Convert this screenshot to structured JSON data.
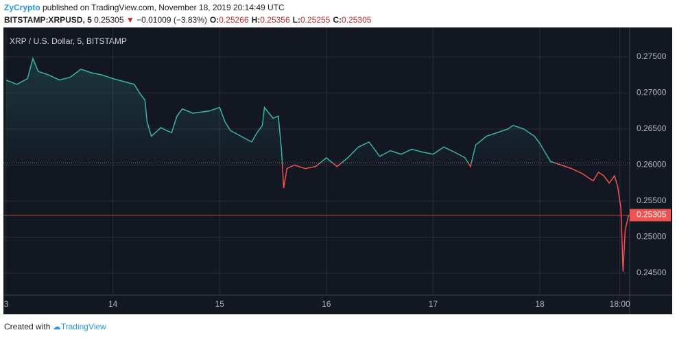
{
  "header": {
    "author": "ZyCrypto",
    "published": " published on TradingView.com, November 18, 2019 20:14:49 UTC",
    "symbol": "BITSTAMP:XRPUSD, 5",
    "price": "0.25305",
    "change": "−0.01009 (−3.83%)",
    "ohlc": [
      {
        "label": "O:",
        "value": "0.25266"
      },
      {
        "label": "H:",
        "value": "0.25356"
      },
      {
        "label": "L:",
        "value": "0.25255"
      },
      {
        "label": "C:",
        "value": "0.25305"
      }
    ]
  },
  "chart_data": {
    "type": "line",
    "title": "XRP / U.S. Dollar, 5, BITSTAMP",
    "x": [
      13.0,
      13.1,
      13.2,
      13.25,
      13.3,
      13.4,
      13.5,
      13.6,
      13.7,
      13.8,
      13.9,
      14.0,
      14.1,
      14.2,
      14.25,
      14.3,
      14.32,
      14.36,
      14.45,
      14.5,
      14.55,
      14.6,
      14.65,
      14.75,
      14.9,
      15.0,
      15.05,
      15.1,
      15.2,
      15.3,
      15.35,
      15.4,
      15.42,
      15.5,
      15.55,
      15.58,
      15.6,
      15.63,
      15.7,
      15.8,
      15.9,
      16.0,
      16.1,
      16.2,
      16.3,
      16.4,
      16.5,
      16.6,
      16.7,
      16.8,
      16.9,
      17.0,
      17.1,
      17.2,
      17.3,
      17.35,
      17.4,
      17.5,
      17.6,
      17.7,
      17.75,
      17.85,
      17.95,
      18.0,
      18.1,
      18.2,
      18.3,
      18.4,
      18.5,
      18.55,
      18.6,
      18.65,
      18.7,
      18.73,
      18.76,
      18.78,
      18.8,
      18.82,
      18.83
    ],
    "series": [
      {
        "name": "XRPUSD",
        "color": "#3bb3a0",
        "color_below": "#ef5350",
        "values": [
          0.2718,
          0.2712,
          0.272,
          0.2748,
          0.273,
          0.2725,
          0.2718,
          0.2722,
          0.2733,
          0.2728,
          0.2725,
          0.272,
          0.2716,
          0.2712,
          0.27,
          0.269,
          0.266,
          0.264,
          0.2652,
          0.2648,
          0.2645,
          0.2668,
          0.2678,
          0.2672,
          0.2675,
          0.268,
          0.266,
          0.2648,
          0.264,
          0.2632,
          0.2645,
          0.2655,
          0.268,
          0.2665,
          0.2668,
          0.262,
          0.2568,
          0.2595,
          0.26,
          0.2595,
          0.2598,
          0.261,
          0.2598,
          0.261,
          0.2625,
          0.2632,
          0.2612,
          0.262,
          0.2615,
          0.2622,
          0.2618,
          0.2615,
          0.2625,
          0.2618,
          0.261,
          0.2598,
          0.2628,
          0.264,
          0.2645,
          0.265,
          0.2655,
          0.265,
          0.264,
          0.263,
          0.2605,
          0.26,
          0.2595,
          0.2588,
          0.2578,
          0.259,
          0.2585,
          0.2575,
          0.2585,
          0.257,
          0.254,
          0.2452,
          0.251,
          0.2522,
          0.25305
        ]
      }
    ],
    "baseline": 0.2603,
    "last_price": 0.25305,
    "xlim": [
      12.974,
      18.842
    ],
    "ylim": [
      0.24195,
      0.2791
    ],
    "xticks": [
      {
        "value": 13,
        "label": "3"
      },
      14,
      15,
      16,
      17,
      18,
      {
        "value": 18.75,
        "label": "18:00"
      }
    ],
    "yticks": [
      {
        "value": 0.245,
        "label": "0.24500"
      },
      {
        "value": 0.25,
        "label": "0.25000"
      },
      {
        "value": 0.255,
        "label": "0.25500"
      },
      {
        "value": 0.26,
        "label": "0.26000"
      },
      {
        "value": 0.265,
        "label": "0.26500"
      },
      {
        "value": 0.27,
        "label": "0.27000"
      },
      {
        "value": 0.275,
        "label": "0.27500"
      }
    ],
    "grid": true
  },
  "footer": {
    "created": "Created with",
    "brand": "TradingView"
  }
}
